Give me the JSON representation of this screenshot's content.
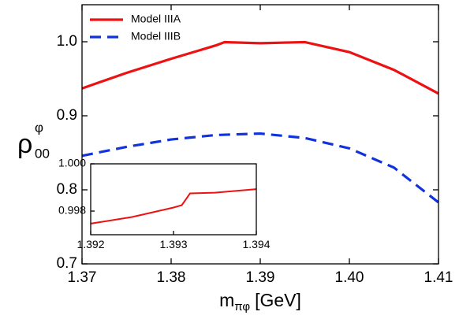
{
  "chart_data": [
    {
      "type": "line",
      "xlabel": [
        "m",
        "πφ",
        "[GeV]"
      ],
      "ylabel": [
        "ρ",
        "φ",
        "00"
      ],
      "xlim": [
        1.37,
        1.41
      ],
      "xticks": [
        1.37,
        1.38,
        1.39,
        {
          "value": 1.4,
          "label": "1.40"
        },
        1.41
      ],
      "ylim": [
        0.7,
        1.05
      ],
      "yticks": [
        0.7,
        0.8,
        0.9,
        {
          "value": 1.0,
          "label": "1.0"
        }
      ],
      "legend": "upper left",
      "series": [
        {
          "name": "Model IIIA",
          "color": "#ee1111",
          "linestyle": "solid",
          "x": [
            1.37,
            1.375,
            1.38,
            1.385,
            1.386,
            1.39,
            1.395,
            1.4,
            1.405,
            1.41
          ],
          "values": [
            0.937,
            0.958,
            0.977,
            0.995,
            0.9995,
            0.998,
            0.9995,
            0.986,
            0.962,
            0.93
          ]
        },
        {
          "name": "Model IIIB",
          "color": "#1133dd",
          "linestyle": "dashed",
          "x": [
            1.37,
            1.375,
            1.38,
            1.385,
            1.39,
            1.395,
            1.4,
            1.405,
            1.41
          ],
          "values": [
            0.846,
            0.858,
            0.868,
            0.874,
            0.876,
            0.87,
            0.856,
            0.83,
            0.783
          ]
        }
      ]
    },
    {
      "type": "line",
      "xlim": [
        1.392,
        1.394
      ],
      "xticks": [
        1.392,
        1.393,
        1.394
      ],
      "ylim": [
        0.997,
        1.0
      ],
      "yticks": [
        0.998,
        {
          "value": 1.0,
          "label": "1.000"
        }
      ],
      "series": [
        {
          "color": "#ee1111",
          "linestyle": "solid",
          "x": [
            1.392,
            1.3925,
            1.393,
            1.3931,
            1.3932,
            1.3935,
            1.394
          ],
          "values": [
            0.99747,
            0.99775,
            0.99815,
            0.99825,
            0.99875,
            0.99878,
            0.99893
          ]
        }
      ]
    }
  ]
}
